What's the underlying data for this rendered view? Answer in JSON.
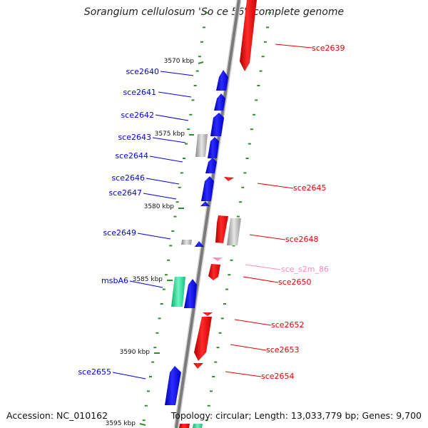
{
  "title": "Sorangium cellulosum 'So ce 56', complete genome",
  "accession_text": "Accession: NC_010162",
  "summary_text": "Topology: circular; Length: 13,033,779 bp; Genes: 9,700",
  "colors": {
    "forward_gene": "#0000ee",
    "reverse_gene": "#ee0000",
    "ncrna": "#ff88bb",
    "pseudo": "#aaaaaa",
    "transporter": "#22dd99",
    "tick": "#2e8b2e",
    "backbone": "#888888"
  },
  "scale_labels": [
    {
      "text": "3570 kbp"
    },
    {
      "text": "3575 kbp"
    },
    {
      "text": "3580 kbp"
    },
    {
      "text": "3585 kbp"
    },
    {
      "text": "3590 kbp"
    },
    {
      "text": "3595 kbp"
    }
  ],
  "genes": [
    {
      "name": "sce2639",
      "strand": "reverse",
      "type": "reverse_gene"
    },
    {
      "name": "sce2640",
      "strand": "forward",
      "type": "forward_gene"
    },
    {
      "name": "sce2641",
      "strand": "forward",
      "type": "forward_gene"
    },
    {
      "name": "sce2642",
      "strand": "forward",
      "type": "forward_gene"
    },
    {
      "name": "sce2643",
      "strand": "forward",
      "type": "forward_gene"
    },
    {
      "name": "sce2644",
      "strand": "forward",
      "type": "forward_gene"
    },
    {
      "name": "sce2645",
      "strand": "reverse",
      "type": "reverse_gene"
    },
    {
      "name": "sce2646",
      "strand": "forward",
      "type": "forward_gene"
    },
    {
      "name": "sce2647",
      "strand": "forward",
      "type": "forward_gene"
    },
    {
      "name": "sce2648",
      "strand": "reverse",
      "type": "reverse_gene"
    },
    {
      "name": "sce2649",
      "strand": "forward",
      "type": "forward_gene"
    },
    {
      "name": "sce_s2m_86",
      "strand": "reverse",
      "type": "ncrna"
    },
    {
      "name": "sce2650",
      "strand": "reverse",
      "type": "reverse_gene"
    },
    {
      "name": "msbA6",
      "strand": "forward",
      "type": "forward_gene"
    },
    {
      "name": "sce2652",
      "strand": "reverse",
      "type": "reverse_gene"
    },
    {
      "name": "sce2653",
      "strand": "reverse",
      "type": "reverse_gene"
    },
    {
      "name": "sce2654",
      "strand": "reverse",
      "type": "reverse_gene"
    },
    {
      "name": "sce2655",
      "strand": "forward",
      "type": "forward_gene"
    }
  ]
}
